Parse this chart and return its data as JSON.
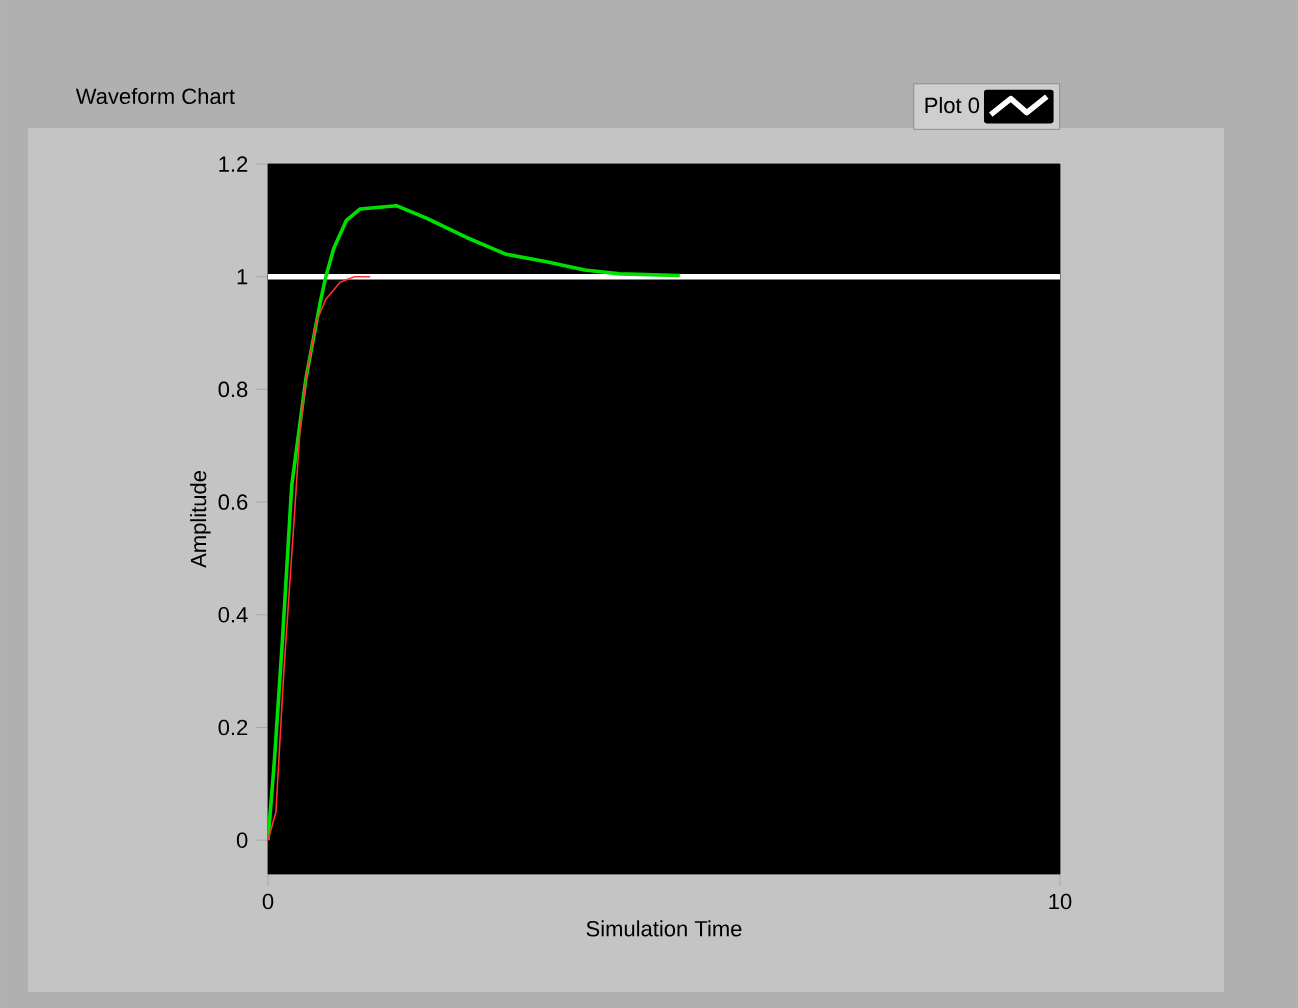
{
  "chart_data": {
    "type": "line",
    "title": "Waveform Chart",
    "xlabel": "Simulation Time",
    "ylabel": "Amplitude",
    "xlim": [
      0,
      10
    ],
    "ylim": [
      -0.06,
      1.2
    ],
    "xticks": [
      0,
      10
    ],
    "yticks": [
      0,
      0.2,
      0.4,
      0.6,
      0.8,
      1,
      1.2
    ],
    "grid": false,
    "legend": "top right",
    "marker": "none",
    "line_style": "solid",
    "series": [
      {
        "name": "Plot 0",
        "color": "#ffffff",
        "x": [
          0,
          10
        ],
        "values": [
          1,
          1
        ]
      },
      {
        "color": "#00e000",
        "x": [
          0,
          0.08,
          0.18,
          0.3,
          0.48,
          0.66,
          0.73,
          0.83,
          0.99,
          1.16,
          1.62,
          2.0,
          2.5,
          3.0,
          3.5,
          4.0,
          4.44,
          5.2
        ],
        "values": [
          0,
          0.14,
          0.35,
          0.63,
          0.82,
          0.955,
          1.0,
          1.05,
          1.1,
          1.12,
          1.126,
          1.104,
          1.07,
          1.04,
          1.027,
          1.012,
          1.005,
          1.002
        ]
      },
      {
        "color": "#ff3030",
        "x": [
          0,
          0.1,
          0.2,
          0.33,
          0.4,
          0.48,
          0.61,
          0.73,
          0.91,
          1.09,
          1.29
        ],
        "values": [
          0,
          0.05,
          0.3,
          0.57,
          0.72,
          0.82,
          0.92,
          0.96,
          0.99,
          1.0,
          1.0
        ]
      }
    ]
  }
}
